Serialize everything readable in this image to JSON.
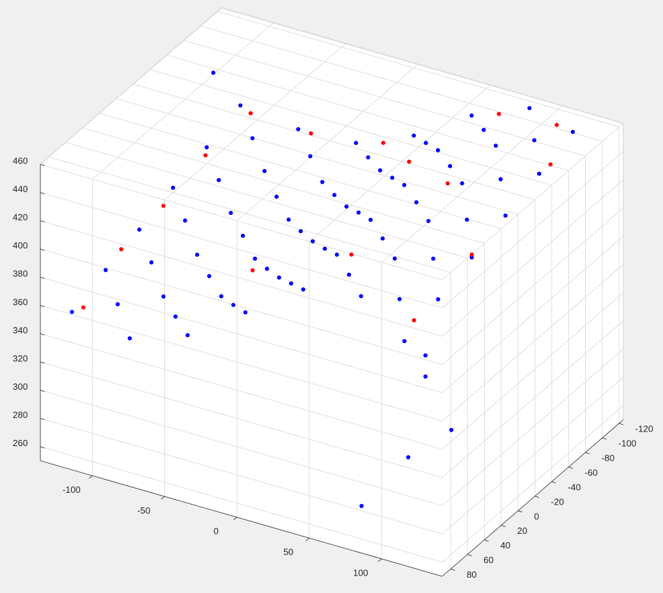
{
  "chart_data": {
    "type": "scatter3d",
    "xlim": [
      -136,
      142
    ],
    "xticks": [
      -100,
      -50,
      0,
      50,
      100
    ],
    "ylim": [
      -125,
      90
    ],
    "yticks": [
      -120,
      -100,
      -80,
      -60,
      -40,
      -20,
      0,
      20,
      40,
      60,
      80
    ],
    "zlim": [
      250,
      460
    ],
    "zticks": [
      260,
      280,
      300,
      320,
      340,
      360,
      380,
      400,
      420,
      440,
      460
    ],
    "grid": true,
    "series": [
      {
        "color": "#0000ff",
        "x": [
          -120,
          -120,
          -120,
          -120,
          -120,
          -120,
          -80,
          -80,
          -80,
          -80,
          -80,
          -80,
          -40,
          -40,
          -40,
          -40,
          -40,
          -40,
          0,
          0,
          0,
          0,
          0,
          0,
          40,
          40,
          40,
          40,
          40,
          40,
          80,
          80,
          80,
          80,
          80,
          80,
          110,
          110,
          110,
          110,
          110,
          110,
          -100,
          -100,
          -100,
          -100,
          -100,
          -60,
          -60,
          -60,
          -60,
          -60,
          -20,
          -20,
          -20,
          -20,
          -20,
          20,
          20,
          20,
          20,
          20,
          60,
          60,
          60,
          60,
          60,
          95,
          95,
          95,
          95,
          95,
          110,
          110,
          125,
          108,
          85,
          -130
        ],
        "y": [
          80,
          40,
          0,
          -40,
          -80,
          -120,
          80,
          40,
          0,
          -40,
          -80,
          -120,
          80,
          40,
          0,
          -40,
          -80,
          -120,
          80,
          40,
          0,
          -40,
          -80,
          -120,
          80,
          40,
          0,
          -40,
          -80,
          -120,
          80,
          40,
          0,
          -40,
          -80,
          -120,
          80,
          40,
          0,
          -40,
          -80,
          -120,
          60,
          20,
          -20,
          -60,
          -100,
          60,
          20,
          -20,
          -60,
          -100,
          60,
          20,
          -20,
          -60,
          -100,
          60,
          20,
          -20,
          -60,
          -100,
          60,
          20,
          -20,
          -60,
          -100,
          60,
          20,
          -20,
          -60,
          -100,
          55,
          55,
          50,
          72,
          88,
          -105
        ],
        "z": [
          355,
          364,
          372,
          381,
          389,
          398,
          348,
          357,
          366,
          375,
          384,
          393,
          362,
          369,
          375,
          382,
          388,
          395,
          390,
          394,
          399,
          403,
          408,
          412,
          418,
          422,
          426,
          430,
          434,
          438,
          425,
          431,
          437,
          443,
          449,
          455,
          402,
          411,
          420,
          429,
          438,
          447,
          356,
          365,
          374,
          382,
          391,
          359,
          367,
          375,
          382,
          390,
          379,
          384,
          390,
          395,
          401,
          406,
          410,
          415,
          419,
          423,
          424,
          429,
          434,
          439,
          444,
          417,
          425,
          432,
          440,
          447,
          379,
          364,
          328,
          315,
          282,
          426
        ]
      },
      {
        "color": "#ff0000",
        "x": [
          -115,
          -115,
          -115,
          -115,
          -110,
          -70,
          -20,
          60,
          100,
          112,
          110,
          105,
          50,
          -30,
          70,
          20
        ],
        "y": [
          75,
          30,
          -20,
          -70,
          -115,
          -118,
          -118,
          -118,
          -118,
          -90,
          0,
          60,
          40,
          20,
          -40,
          -80
        ],
        "z": [
          357,
          375,
          380,
          390,
          398,
          394,
          402,
          446,
          450,
          440,
          422,
          405,
          425,
          380,
          440,
          420
        ]
      }
    ]
  }
}
